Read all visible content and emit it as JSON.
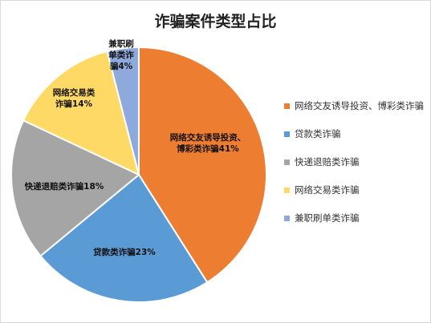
{
  "chart_data": {
    "type": "pie",
    "title": "诈骗案件类型占比",
    "categories": [
      "网络交友诱导投资、博彩类诈骗",
      "贷款类诈骗",
      "快递退赔类诈骗",
      "网络交易类诈骗",
      "兼职刷单类诈骗"
    ],
    "values": [
      41,
      23,
      18,
      14,
      4
    ],
    "colors": [
      "#ED7D31",
      "#5B9BD5",
      "#A5A5A5",
      "#FFD966",
      "#8EA9DB"
    ],
    "data_labels": [
      [
        "网络交友诱导投资、",
        "博彩类诈骗41%"
      ],
      [
        "贷款类诈骗23%"
      ],
      [
        "快递退赔类诈骗18%"
      ],
      [
        "网络交易类",
        "诈骗14%"
      ],
      [
        "兼职刷",
        "单类诈",
        "骗4%"
      ]
    ],
    "legend": {
      "position": "right",
      "entries": [
        "网络交友诱导投资、博彩类诈骗",
        "贷款类诈骗",
        "快递退赔类诈骗",
        "网络交易类诈骗",
        "兼职刷单类诈骗"
      ]
    }
  }
}
